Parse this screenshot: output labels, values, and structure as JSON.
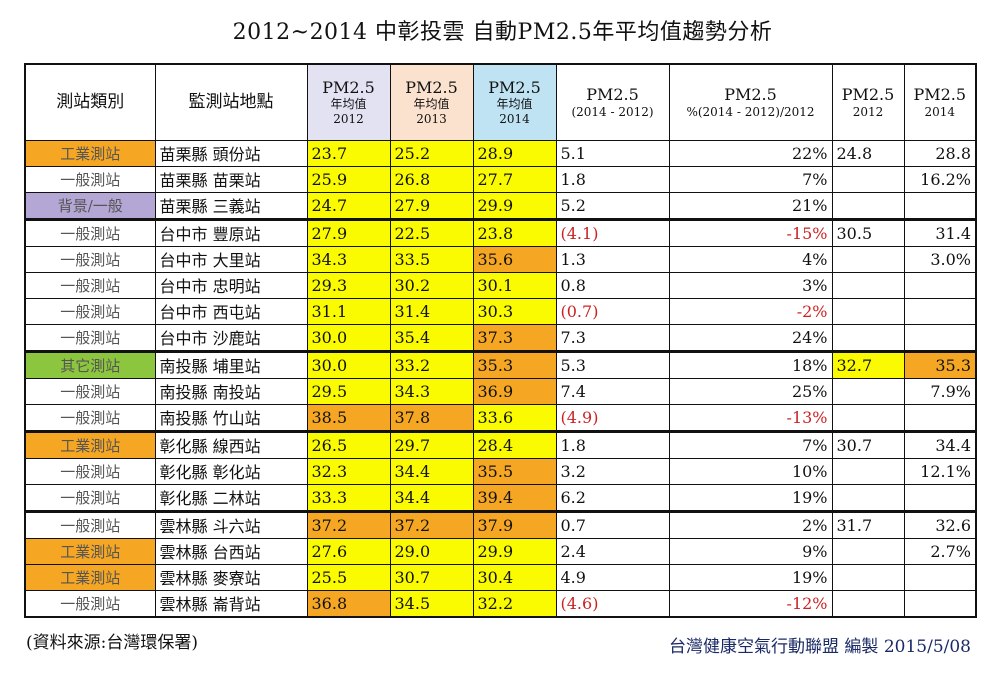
{
  "title": "2012~2014 中彰投雲 自動PM2.5年平均值趨勢分析",
  "colors": {
    "yellow": "#fafa00",
    "orange": "#f5a623",
    "purple": "#b4a7d6",
    "green": "#8cc63e",
    "header_2012": "#e3e2f3",
    "header_2013": "#fbe2cf",
    "header_2014": "#bfe3f3",
    "negative": "#cc2222"
  },
  "headers": {
    "type": "測站類別",
    "site": "監測站地點",
    "pm2012": {
      "top": "PM2.5",
      "mid": "年均值",
      "bot": "2012"
    },
    "pm2013": {
      "top": "PM2.5",
      "mid": "年均值",
      "bot": "2013"
    },
    "pm2014": {
      "top": "PM2.5",
      "mid": "年均值",
      "bot": "2014"
    },
    "diff": {
      "top": "PM2.5",
      "bot": "(2014 - 2012)"
    },
    "pct": {
      "top": "PM2.5",
      "bot": "%(2014 - 2012)/2012"
    },
    "c2012": {
      "top": "PM2.5",
      "bot": "2012"
    },
    "c2014": {
      "top": "PM2.5",
      "bot": "2014"
    }
  },
  "rows": [
    {
      "type": "工業測站",
      "type_color": "orange",
      "site": "苗栗縣 頭份站",
      "v12": "23.7",
      "c12": "yellow",
      "v13": "25.2",
      "c13": "yellow",
      "v14": "28.9",
      "c14": "yellow",
      "diff": "5.1",
      "neg": false,
      "pct": "22%",
      "y12": "24.8",
      "y12c": "",
      "y14": "28.8",
      "y14c": "",
      "gs": false
    },
    {
      "type": "一般測站",
      "type_color": "",
      "site": "苗栗縣 苗栗站",
      "v12": "25.9",
      "c12": "yellow",
      "v13": "26.8",
      "c13": "yellow",
      "v14": "27.7",
      "c14": "yellow",
      "diff": "1.8",
      "neg": false,
      "pct": "7%",
      "y12": "",
      "y12c": "",
      "y14": "16.2%",
      "y14c": "",
      "gs": false
    },
    {
      "type": "背景/一般",
      "type_color": "purple",
      "site": "苗栗縣 三義站",
      "v12": "24.7",
      "c12": "yellow",
      "v13": "27.9",
      "c13": "yellow",
      "v14": "29.9",
      "c14": "yellow",
      "diff": "5.2",
      "neg": false,
      "pct": "21%",
      "y12": "",
      "y12c": "",
      "y14": "",
      "y14c": "",
      "gs": false
    },
    {
      "type": "一般測站",
      "type_color": "",
      "site": "台中市 豐原站",
      "v12": "27.9",
      "c12": "yellow",
      "v13": "22.5",
      "c13": "yellow",
      "v14": "23.8",
      "c14": "yellow",
      "diff": "(4.1)",
      "neg": true,
      "pct": "-15%",
      "y12": "30.5",
      "y12c": "",
      "y14": "31.4",
      "y14c": "",
      "gs": true
    },
    {
      "type": "一般測站",
      "type_color": "",
      "site": "台中市 大里站",
      "v12": "34.3",
      "c12": "yellow",
      "v13": "33.5",
      "c13": "yellow",
      "v14": "35.6",
      "c14": "orange",
      "diff": "1.3",
      "neg": false,
      "pct": "4%",
      "y12": "",
      "y12c": "",
      "y14": "3.0%",
      "y14c": "",
      "gs": false
    },
    {
      "type": "一般測站",
      "type_color": "",
      "site": "台中市 忠明站",
      "v12": "29.3",
      "c12": "yellow",
      "v13": "30.2",
      "c13": "yellow",
      "v14": "30.1",
      "c14": "yellow",
      "diff": "0.8",
      "neg": false,
      "pct": "3%",
      "y12": "",
      "y12c": "",
      "y14": "",
      "y14c": "",
      "gs": false
    },
    {
      "type": "一般測站",
      "type_color": "",
      "site": "台中市 西屯站",
      "v12": "31.1",
      "c12": "yellow",
      "v13": "31.4",
      "c13": "yellow",
      "v14": "30.3",
      "c14": "yellow",
      "diff": "(0.7)",
      "neg": true,
      "pct": "-2%",
      "y12": "",
      "y12c": "",
      "y14": "",
      "y14c": "",
      "gs": false
    },
    {
      "type": "一般測站",
      "type_color": "",
      "site": "台中市 沙鹿站",
      "v12": "30.0",
      "c12": "yellow",
      "v13": "35.4",
      "c13": "yellow",
      "v14": "37.3",
      "c14": "orange",
      "diff": "7.3",
      "neg": false,
      "pct": "24%",
      "y12": "",
      "y12c": "",
      "y14": "",
      "y14c": "",
      "gs": false
    },
    {
      "type": "其它測站",
      "type_color": "green",
      "site": "南投縣 埔里站",
      "v12": "30.0",
      "c12": "yellow",
      "v13": "33.2",
      "c13": "yellow",
      "v14": "35.3",
      "c14": "orange",
      "diff": "5.3",
      "neg": false,
      "pct": "18%",
      "y12": "32.7",
      "y12c": "yellow",
      "y14": "35.3",
      "y14c": "orange",
      "gs": true
    },
    {
      "type": "一般測站",
      "type_color": "",
      "site": "南投縣 南投站",
      "v12": "29.5",
      "c12": "yellow",
      "v13": "34.3",
      "c13": "yellow",
      "v14": "36.9",
      "c14": "orange",
      "diff": "7.4",
      "neg": false,
      "pct": "25%",
      "y12": "",
      "y12c": "",
      "y14": "7.9%",
      "y14c": "",
      "gs": false
    },
    {
      "type": "一般測站",
      "type_color": "",
      "site": "南投縣 竹山站",
      "v12": "38.5",
      "c12": "orange",
      "v13": "37.8",
      "c13": "orange",
      "v14": "33.6",
      "c14": "yellow",
      "diff": "(4.9)",
      "neg": true,
      "pct": "-13%",
      "y12": "",
      "y12c": "",
      "y14": "",
      "y14c": "",
      "gs": false
    },
    {
      "type": "工業測站",
      "type_color": "orange",
      "site": "彰化縣 線西站",
      "v12": "26.5",
      "c12": "yellow",
      "v13": "29.7",
      "c13": "yellow",
      "v14": "28.4",
      "c14": "yellow",
      "diff": "1.8",
      "neg": false,
      "pct": "7%",
      "y12": "30.7",
      "y12c": "",
      "y14": "34.4",
      "y14c": "",
      "gs": true
    },
    {
      "type": "一般測站",
      "type_color": "",
      "site": "彰化縣 彰化站",
      "v12": "32.3",
      "c12": "yellow",
      "v13": "34.4",
      "c13": "yellow",
      "v14": "35.5",
      "c14": "orange",
      "diff": "3.2",
      "neg": false,
      "pct": "10%",
      "y12": "",
      "y12c": "",
      "y14": "12.1%",
      "y14c": "",
      "gs": false
    },
    {
      "type": "一般測站",
      "type_color": "",
      "site": "彰化縣 二林站",
      "v12": "33.3",
      "c12": "yellow",
      "v13": "34.4",
      "c13": "yellow",
      "v14": "39.4",
      "c14": "orange",
      "diff": "6.2",
      "neg": false,
      "pct": "19%",
      "y12": "",
      "y12c": "",
      "y14": "",
      "y14c": "",
      "gs": false
    },
    {
      "type": "一般測站",
      "type_color": "",
      "site": "雲林縣 斗六站",
      "v12": "37.2",
      "c12": "orange",
      "v13": "37.2",
      "c13": "orange",
      "v14": "37.9",
      "c14": "orange",
      "diff": "0.7",
      "neg": false,
      "pct": "2%",
      "y12": "31.7",
      "y12c": "",
      "y14": "32.6",
      "y14c": "",
      "gs": true
    },
    {
      "type": "工業測站",
      "type_color": "orange",
      "site": "雲林縣 台西站",
      "v12": "27.6",
      "c12": "yellow",
      "v13": "29.0",
      "c13": "yellow",
      "v14": "29.9",
      "c14": "yellow",
      "diff": "2.4",
      "neg": false,
      "pct": "9%",
      "y12": "",
      "y12c": "",
      "y14": "2.7%",
      "y14c": "",
      "gs": false
    },
    {
      "type": "工業測站",
      "type_color": "orange",
      "site": "雲林縣 麥寮站",
      "v12": "25.5",
      "c12": "yellow",
      "v13": "30.7",
      "c13": "yellow",
      "v14": "30.4",
      "c14": "yellow",
      "diff": "4.9",
      "neg": false,
      "pct": "19%",
      "y12": "",
      "y12c": "",
      "y14": "",
      "y14c": "",
      "gs": false
    },
    {
      "type": "一般測站",
      "type_color": "",
      "site": "雲林縣 崙背站",
      "v12": "36.8",
      "c12": "orange",
      "v13": "34.5",
      "c13": "yellow",
      "v14": "32.2",
      "c14": "yellow",
      "diff": "(4.6)",
      "neg": true,
      "pct": "-12%",
      "y12": "",
      "y12c": "",
      "y14": "",
      "y14c": "",
      "gs": false
    }
  ],
  "footer": {
    "source": "(資料來源:台灣環保署)",
    "credit": "台灣健康空氣行動聯盟 編製 2015/5/08"
  }
}
